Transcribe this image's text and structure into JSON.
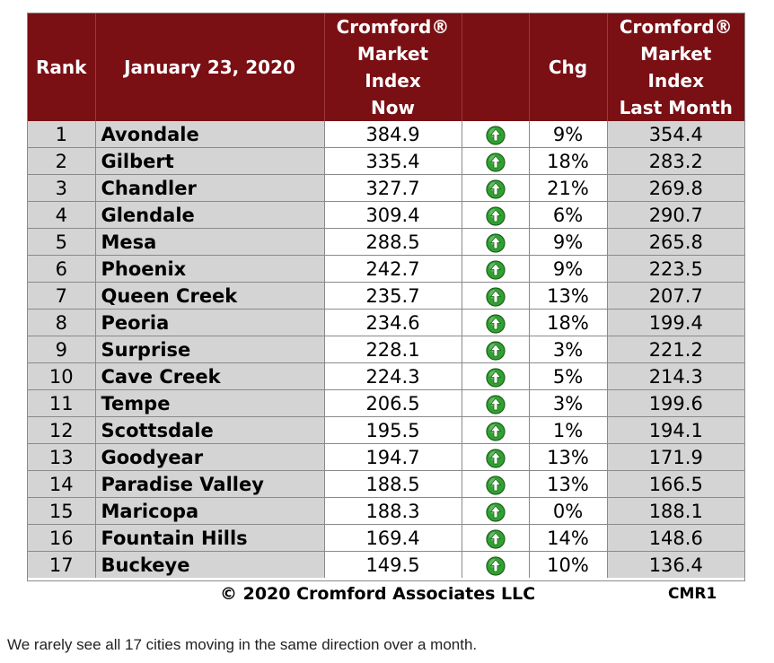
{
  "chart_data": {
    "type": "table",
    "columns": [
      [
        "Rank"
      ],
      [
        "January 23, 2020"
      ],
      [
        "Cromford®",
        "Market",
        "Index",
        "Now"
      ],
      [
        ""
      ],
      [
        "Chg"
      ],
      [
        "Cromford®",
        "Market",
        "Index",
        "Last Month"
      ]
    ],
    "rows": [
      {
        "rank": "1",
        "city": "Avondale",
        "now": "384.9",
        "chg": "9%",
        "last": "354.4"
      },
      {
        "rank": "2",
        "city": "Gilbert",
        "now": "335.4",
        "chg": "18%",
        "last": "283.2"
      },
      {
        "rank": "3",
        "city": "Chandler",
        "now": "327.7",
        "chg": "21%",
        "last": "269.8"
      },
      {
        "rank": "4",
        "city": "Glendale",
        "now": "309.4",
        "chg": "6%",
        "last": "290.7"
      },
      {
        "rank": "5",
        "city": "Mesa",
        "now": "288.5",
        "chg": "9%",
        "last": "265.8"
      },
      {
        "rank": "6",
        "city": "Phoenix",
        "now": "242.7",
        "chg": "9%",
        "last": "223.5"
      },
      {
        "rank": "7",
        "city": "Queen Creek",
        "now": "235.7",
        "chg": "13%",
        "last": "207.7"
      },
      {
        "rank": "8",
        "city": "Peoria",
        "now": "234.6",
        "chg": "18%",
        "last": "199.4"
      },
      {
        "rank": "9",
        "city": "Surprise",
        "now": "228.1",
        "chg": "3%",
        "last": "221.2"
      },
      {
        "rank": "10",
        "city": "Cave Creek",
        "now": "224.3",
        "chg": "5%",
        "last": "214.3"
      },
      {
        "rank": "11",
        "city": "Tempe",
        "now": "206.5",
        "chg": "3%",
        "last": "199.6"
      },
      {
        "rank": "12",
        "city": "Scottsdale",
        "now": "195.5",
        "chg": "1%",
        "last": "194.1"
      },
      {
        "rank": "13",
        "city": "Goodyear",
        "now": "194.7",
        "chg": "13%",
        "last": "171.9"
      },
      {
        "rank": "14",
        "city": "Paradise Valley",
        "now": "188.5",
        "chg": "13%",
        "last": "166.5"
      },
      {
        "rank": "15",
        "city": "Maricopa",
        "now": "188.3",
        "chg": "0%",
        "last": "188.1"
      },
      {
        "rank": "16",
        "city": "Fountain Hills",
        "now": "169.4",
        "chg": "14%",
        "last": "148.6"
      },
      {
        "rank": "17",
        "city": "Buckeye",
        "now": "149.5",
        "chg": "10%",
        "last": "136.4"
      }
    ],
    "trend_icon": "green-up-arrow-icon"
  },
  "colors": {
    "header_bg": "#7a0f14",
    "header_text": "#ffffff",
    "shaded_cell": "#d4d4d4",
    "white_cell": "#ffffff",
    "arrow_green": "#2fa32f"
  },
  "footer": {
    "copyright": "© 2020 Cromford Associates LLC",
    "code": "CMR1"
  },
  "caption": "We rarely see all 17 cities moving in the same direction over a month."
}
